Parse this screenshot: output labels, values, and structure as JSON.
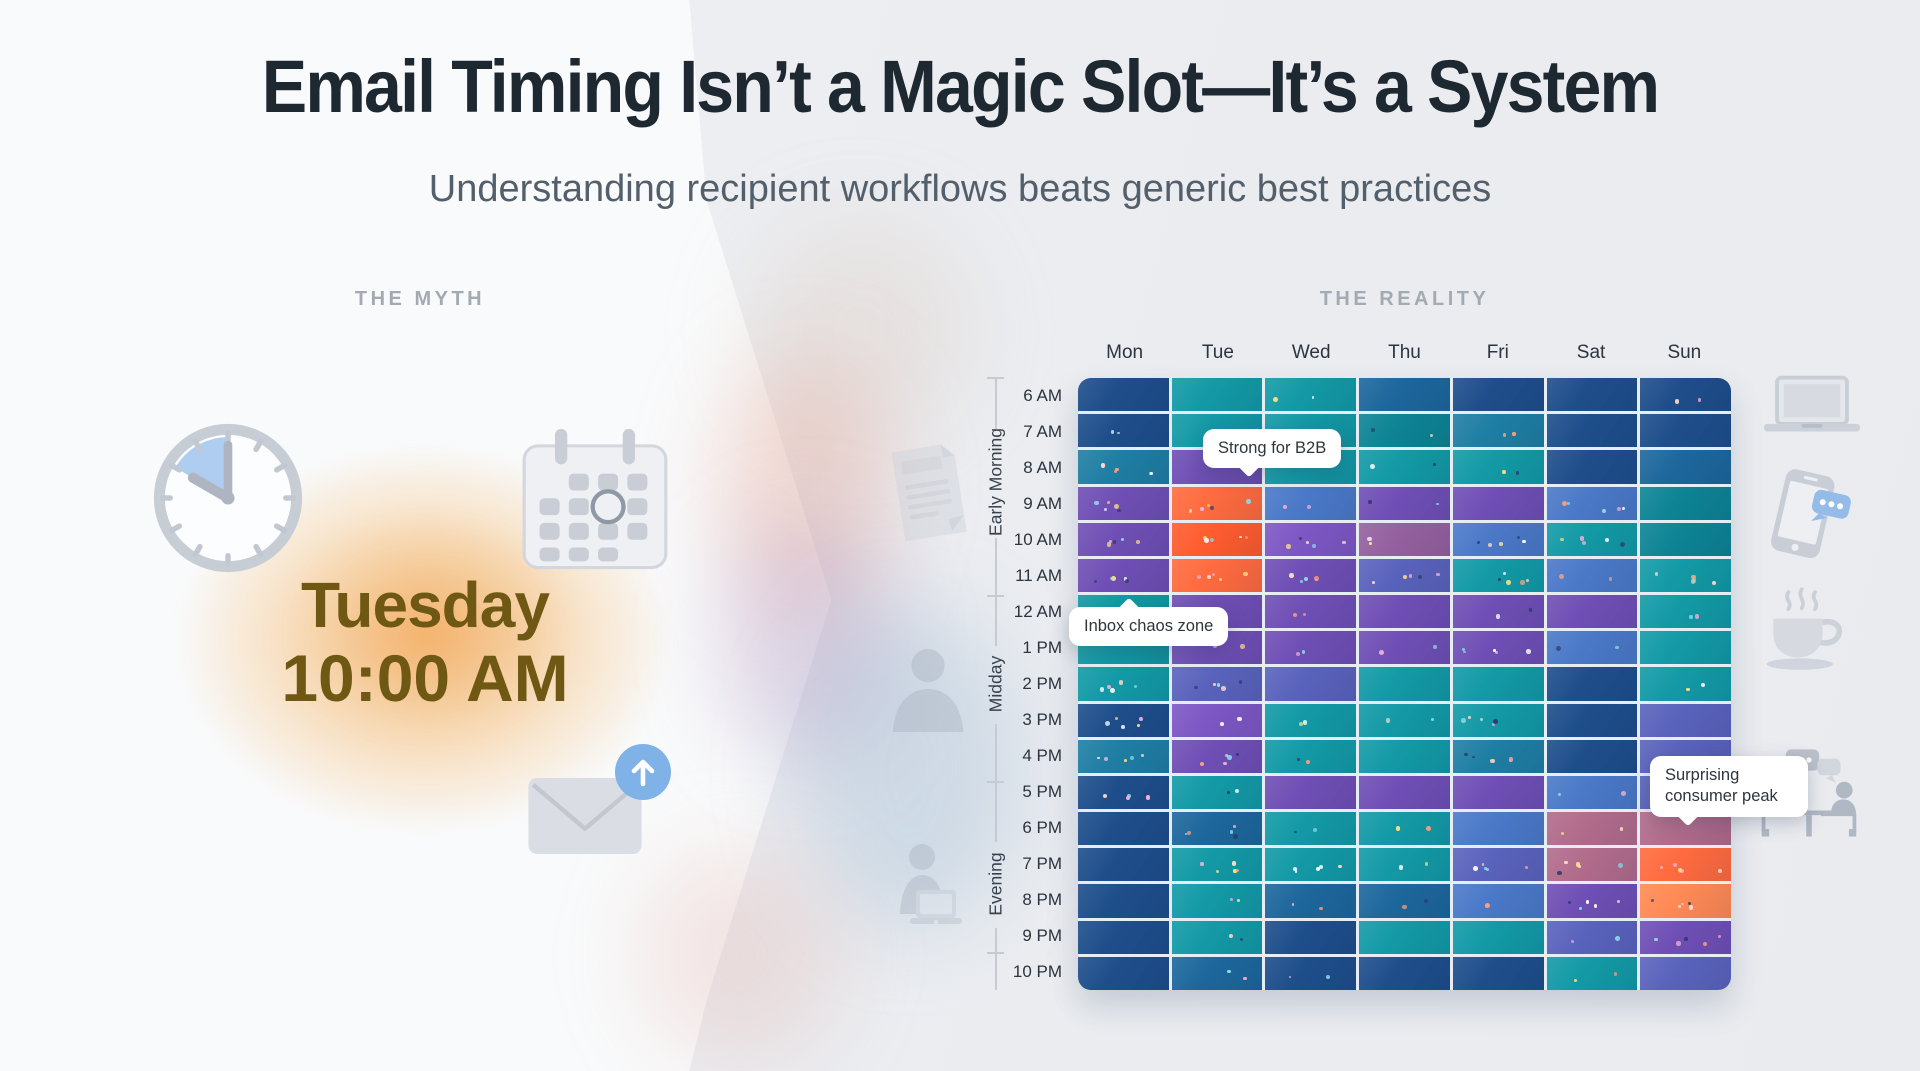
{
  "header": {
    "title": "Email Timing Isn’t a Magic Slot—It’s a System",
    "subtitle": "Understanding recipient workflows beats generic best practices"
  },
  "myth": {
    "section_label": "THE MYTH",
    "day": "Tuesday",
    "time": "10:00 AM",
    "text_color": "#6e5813",
    "glow_color": "#f2a240",
    "icons": [
      "clock-icon",
      "calendar-icon",
      "envelope-icon",
      "send-arrow-icon"
    ]
  },
  "reality": {
    "section_label": "THE REALITY",
    "periods": [
      {
        "label": "Early Morning",
        "from": "6 AM",
        "to": "11 AM"
      },
      {
        "label": "Midday",
        "from": "12 AM",
        "to": "4 PM"
      },
      {
        "label": "Evening",
        "from": "5 PM",
        "to": "10 PM"
      }
    ],
    "annotations": [
      {
        "text": "Strong for B2B",
        "points_to": {
          "day": "Tue",
          "hour": "9 AM"
        }
      },
      {
        "text": "Inbox chaos zone",
        "points_to": {
          "day": "Mon",
          "hour": "11 AM"
        }
      },
      {
        "text": "Surprising consumer peak",
        "points_to": {
          "day": "Sun",
          "hour": "6 PM"
        }
      }
    ],
    "side_icons_left": [
      "document-icon",
      "person-icon",
      "person-laptop-icon"
    ],
    "side_icons_right": [
      "laptop-icon",
      "phone-chat-icon",
      "coffee-icon",
      "meeting-chat-icon"
    ]
  },
  "chart_data": {
    "type": "heatmap",
    "title": "THE REALITY",
    "x_categories": [
      "Mon",
      "Tue",
      "Wed",
      "Thu",
      "Fri",
      "Sat",
      "Sun"
    ],
    "y_categories": [
      "6 AM",
      "7 AM",
      "8 AM",
      "9 AM",
      "10 AM",
      "11 AM",
      "12 AM",
      "1 PM",
      "2 PM",
      "3 PM",
      "4 PM",
      "5 PM",
      "6 PM",
      "7 PM",
      "8 PM",
      "9 PM",
      "10 PM"
    ],
    "legend_position": "none",
    "grid": true,
    "intensity_legend": {
      "navy": "low",
      "blue": "low-mid",
      "tealblue": "mid",
      "teal": "moderate",
      "dteal": "moderate",
      "steel": "elevated",
      "slate": "elevated",
      "purple": "high",
      "violet": "high",
      "plum": "high",
      "rose": "very high",
      "orange": "peak",
      "orange2": "peak",
      "lorange": "near-peak"
    },
    "palette": {
      "navy": "#1E4E8B",
      "blue": "#1D679C",
      "tealblue": "#1F7EA4",
      "teal": "#139AA6",
      "dteal": "#0D8494",
      "steel": "#4B79C8",
      "slate": "#5A63BC",
      "purple": "#6F4FB5",
      "violet": "#7D57C4",
      "plum": "#95619F",
      "rose": "#B26C8C",
      "orange": "#FF6B3F",
      "orange2": "#FF5C2F",
      "lorange": "#FF8A55"
    },
    "cells": [
      [
        "navy",
        "teal",
        "teal",
        "blue",
        "navy",
        "navy",
        "navy"
      ],
      [
        "navy",
        "teal",
        "teal",
        "dteal",
        "tealblue",
        "navy",
        "navy"
      ],
      [
        "tealblue",
        "purple",
        "teal",
        "teal",
        "teal",
        "navy",
        "blue"
      ],
      [
        "purple",
        "orange",
        "steel",
        "purple",
        "purple",
        "steel",
        "dteal"
      ],
      [
        "purple",
        "orange2",
        "violet",
        "plum",
        "steel",
        "teal",
        "dteal"
      ],
      [
        "purple",
        "orange",
        "purple",
        "slate",
        "teal",
        "steel",
        "teal"
      ],
      [
        "teal",
        "purple",
        "purple",
        "purple",
        "purple",
        "purple",
        "teal"
      ],
      [
        "teal",
        "purple",
        "purple",
        "purple",
        "purple",
        "steel",
        "teal"
      ],
      [
        "teal",
        "slate",
        "slate",
        "teal",
        "teal",
        "navy",
        "teal"
      ],
      [
        "navy",
        "violet",
        "teal",
        "teal",
        "teal",
        "navy",
        "slate"
      ],
      [
        "tealblue",
        "purple",
        "teal",
        "teal",
        "tealblue",
        "navy",
        "slate"
      ],
      [
        "navy",
        "teal",
        "purple",
        "purple",
        "purple",
        "steel",
        "slate"
      ],
      [
        "navy",
        "blue",
        "teal",
        "teal",
        "steel",
        "rose",
        "rose"
      ],
      [
        "navy",
        "teal",
        "teal",
        "teal",
        "slate",
        "rose",
        "orange"
      ],
      [
        "navy",
        "teal",
        "blue",
        "blue",
        "steel",
        "purple",
        "lorange"
      ],
      [
        "navy",
        "teal",
        "navy",
        "teal",
        "teal",
        "slate",
        "purple"
      ],
      [
        "navy",
        "blue",
        "navy",
        "navy",
        "navy",
        "teal",
        "slate"
      ]
    ],
    "dots": [
      [
        0,
        0,
        1,
        0,
        0,
        0,
        1
      ],
      [
        1,
        0,
        0,
        1,
        1,
        0,
        0
      ],
      [
        2,
        0,
        0,
        1,
        1,
        0,
        0
      ],
      [
        2,
        2,
        1,
        1,
        0,
        2,
        0
      ],
      [
        2,
        2,
        2,
        1,
        2,
        2,
        0
      ],
      [
        2,
        2,
        2,
        2,
        2,
        1,
        2
      ],
      [
        0,
        0,
        1,
        0,
        1,
        0,
        1
      ],
      [
        0,
        1,
        1,
        1,
        2,
        1,
        0
      ],
      [
        2,
        2,
        0,
        0,
        0,
        0,
        1
      ],
      [
        2,
        1,
        1,
        1,
        2,
        0,
        0
      ],
      [
        2,
        2,
        1,
        0,
        2,
        0,
        0
      ],
      [
        2,
        1,
        0,
        0,
        0,
        1,
        0
      ],
      [
        0,
        2,
        1,
        1,
        0,
        1,
        0
      ],
      [
        0,
        2,
        2,
        1,
        2,
        2,
        2
      ],
      [
        0,
        1,
        1,
        1,
        1,
        2,
        2
      ],
      [
        0,
        1,
        0,
        0,
        0,
        1,
        2
      ],
      [
        0,
        1,
        1,
        0,
        0,
        1,
        0
      ]
    ]
  }
}
